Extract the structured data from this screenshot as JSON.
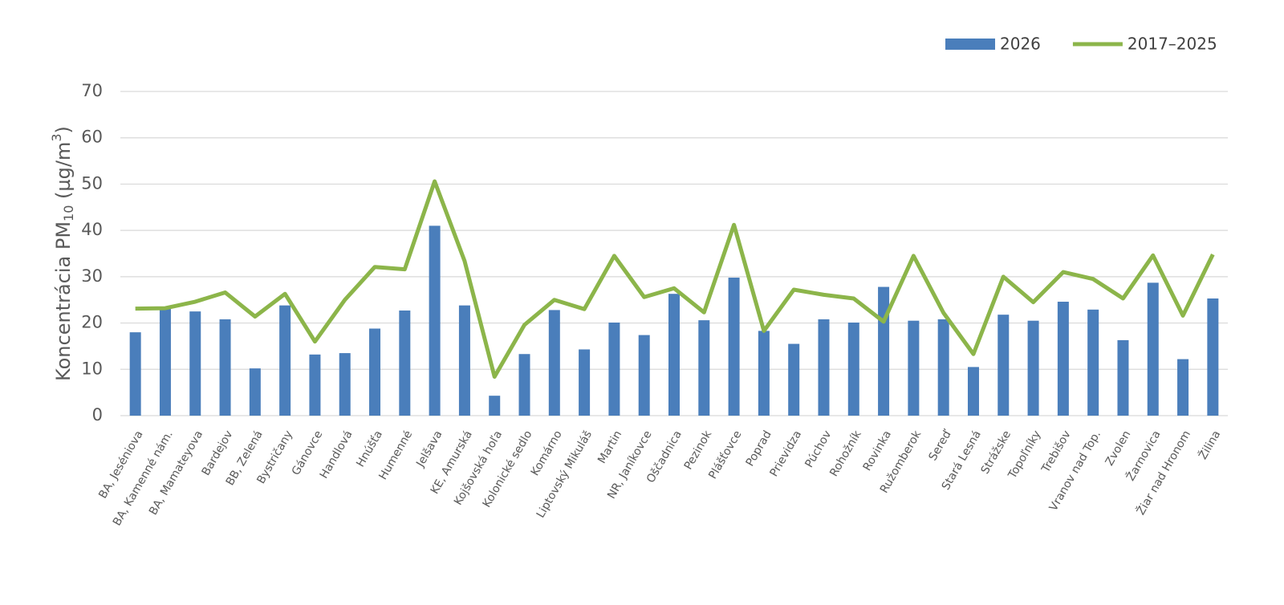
{
  "chart_data": {
    "type": "bar-line",
    "ylabel_parts": [
      "Koncentrácia PM",
      "10",
      " (µg/m",
      "3",
      ")"
    ],
    "categories": [
      "BA, Jeséniova",
      "BA, Kamenné nám.",
      "BA, Mamateyova",
      "Bardejov",
      "BB, Zelená",
      "Bystričany",
      "Gánovce",
      "Handlová",
      "Hnúšťa",
      "Humenné",
      "Jelšava",
      "KE, Amurská",
      "Kojšovská hoľa",
      "Kolonické sedlo",
      "Komárno",
      "Liptovský Mikuláš",
      "Martin",
      "NR, Janíkovce",
      "Oščadnica",
      "Pezinok",
      "Plášťovce",
      "Poprad",
      "Prievidza",
      "Púchov",
      "Rohožník",
      "Rovinka",
      "Ružomberok",
      "Sereď",
      "Stará Lesná",
      "Strážske",
      "Topoľníky",
      "Trebišov",
      "Vranov nad Top.",
      "Zvolen",
      "Žarnovica",
      "Žiar nad Hronom",
      "Žilina"
    ],
    "series": [
      {
        "name": "2026",
        "type": "bar",
        "color": "#4a7ebb",
        "values": [
          18,
          23.5,
          22.5,
          20.8,
          10.2,
          23.8,
          13.2,
          13.5,
          18.8,
          22.7,
          41,
          23.8,
          4.3,
          13.3,
          22.8,
          14.3,
          20.1,
          17.4,
          26.3,
          20.6,
          29.8,
          18.3,
          15.5,
          20.8,
          20.1,
          27.8,
          20.5,
          20.8,
          10.5,
          21.8,
          20.5,
          24.6,
          22.9,
          16.3,
          28.7,
          12.2,
          25.3
        ]
      },
      {
        "name": "2017–2025",
        "type": "line",
        "color": "#8cb54a",
        "values": [
          23.1,
          23.2,
          24.6,
          26.6,
          21.4,
          26.3,
          16,
          25,
          32.1,
          31.6,
          50.6,
          33.4,
          8.4,
          19.6,
          25,
          23,
          34.5,
          25.6,
          27.5,
          22.3,
          41.2,
          18.3,
          27.2,
          26.1,
          25.3,
          20.3,
          34.5,
          22.2,
          13.3,
          30,
          24.5,
          31,
          29.5,
          25.3,
          34.6,
          21.6,
          34.8
        ]
      }
    ],
    "ylim": [
      0,
      70
    ],
    "yticks": [
      0,
      10,
      20,
      30,
      40,
      50,
      60,
      70
    ],
    "grid": true,
    "legend": "top-right"
  }
}
